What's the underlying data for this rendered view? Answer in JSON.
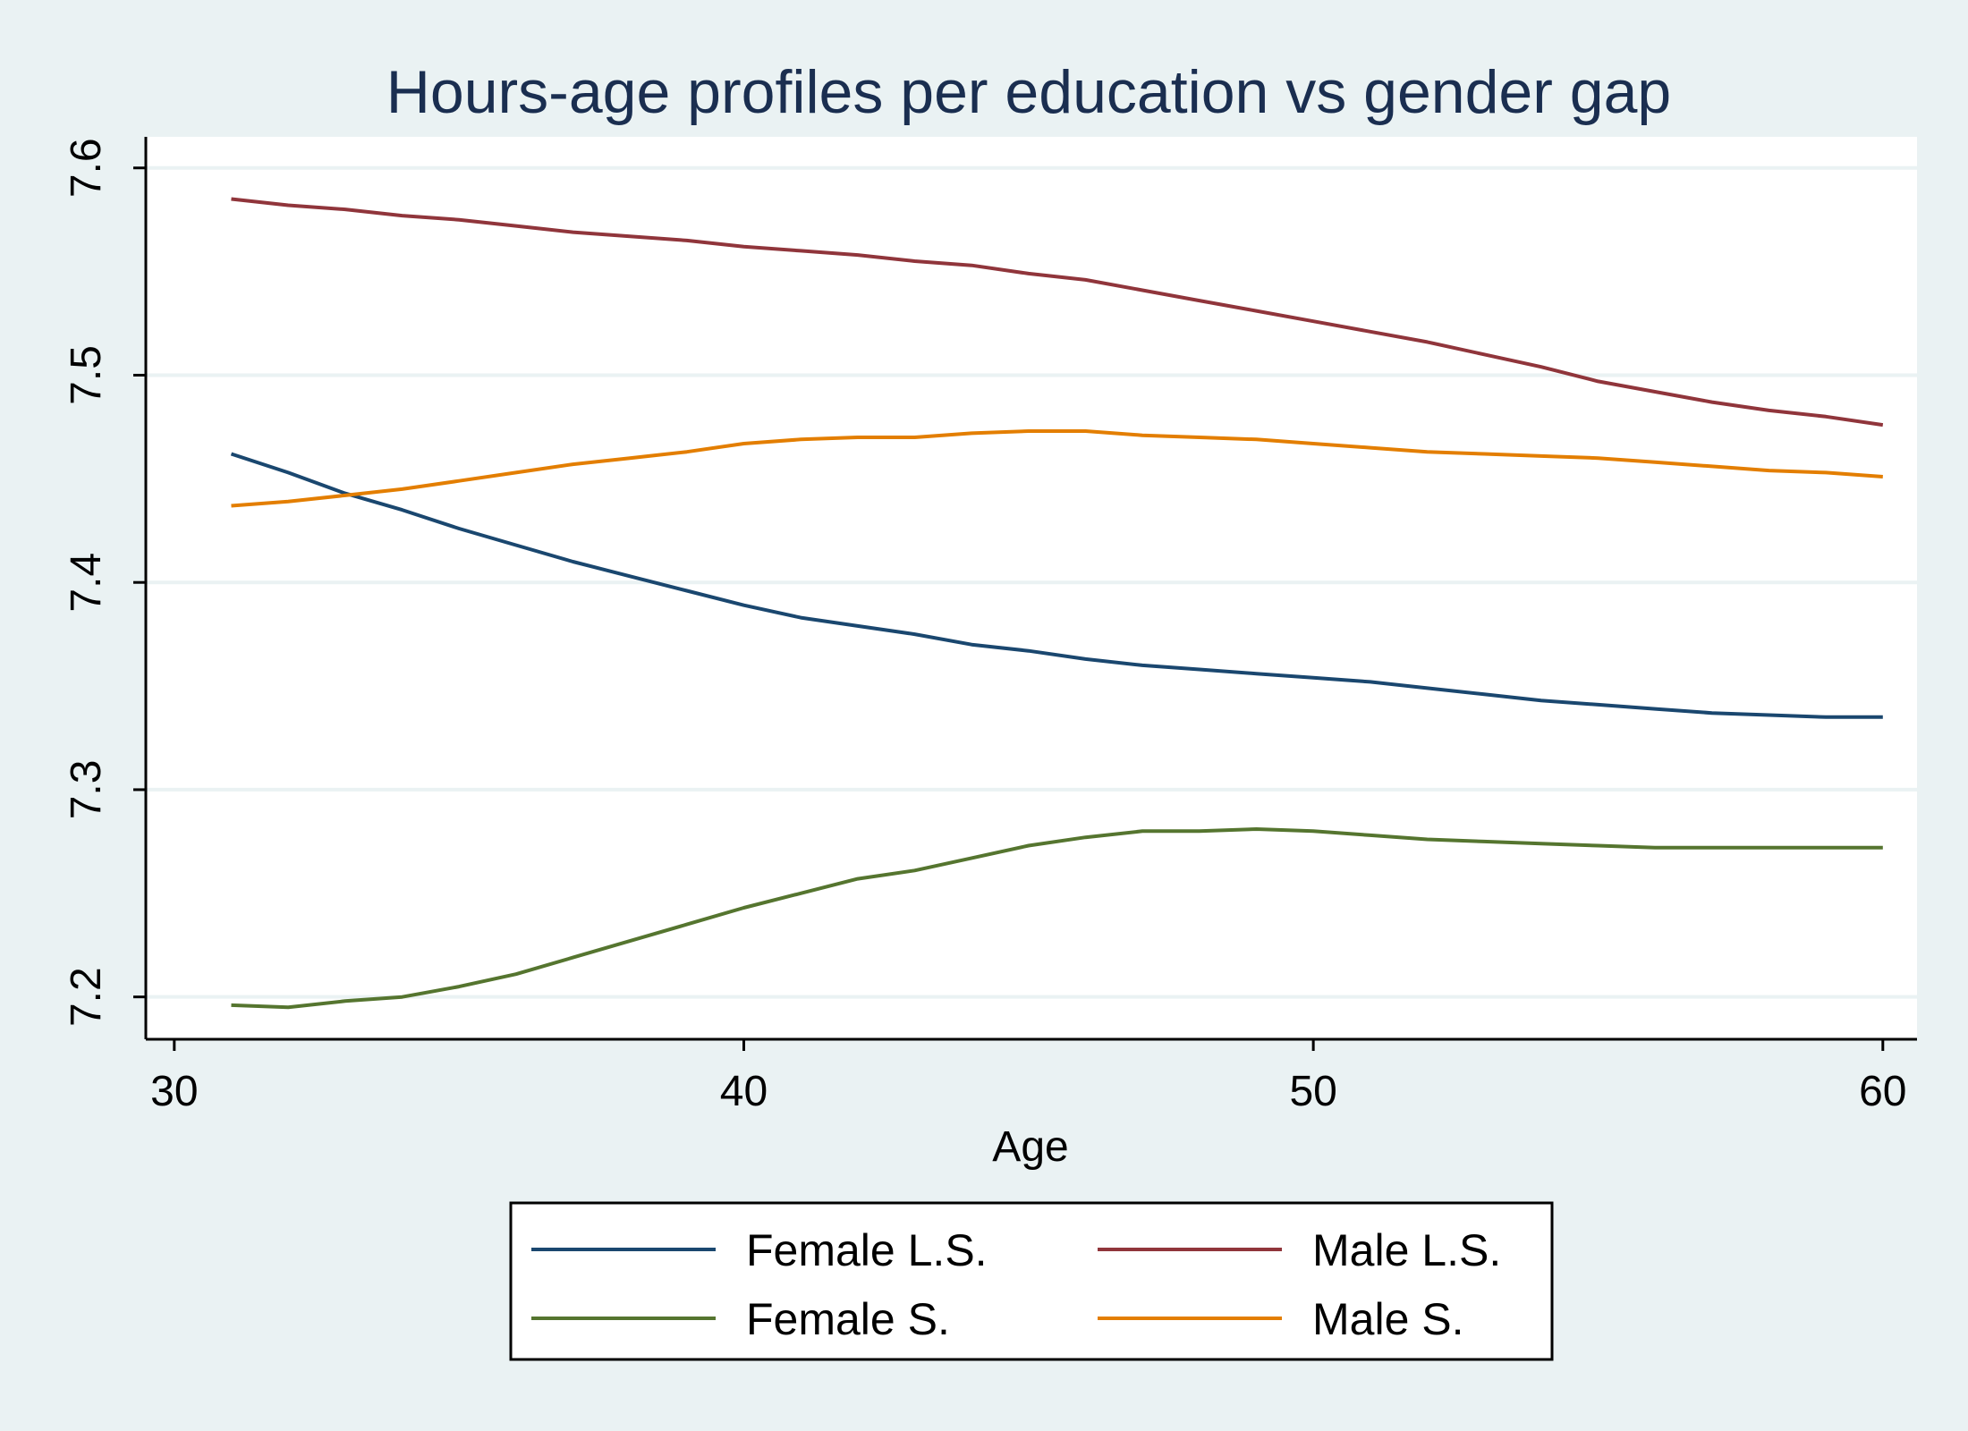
{
  "chart_data": {
    "type": "line",
    "title": "Hours-age profiles per education vs gender gap",
    "xlabel": "Age",
    "ylabel": "",
    "xlim": [
      29.5,
      60.6
    ],
    "ylim": [
      7.18,
      7.615
    ],
    "xticks": [
      30,
      40,
      50,
      60
    ],
    "yticks": [
      7.2,
      7.3,
      7.4,
      7.5,
      7.6
    ],
    "xtick_labels": [
      "30",
      "40",
      "50",
      "60"
    ],
    "ytick_labels": [
      "7.2",
      "7.3",
      "7.4",
      "7.5",
      "7.6"
    ],
    "grid": "horizontal",
    "legend_position": "bottom",
    "series": [
      {
        "name": "Female L.S.",
        "color": "#1a476f",
        "x": [
          31,
          32,
          33,
          34,
          35,
          36,
          37,
          38,
          39,
          40,
          41,
          42,
          43,
          44,
          45,
          46,
          47,
          48,
          49,
          50,
          51,
          52,
          53,
          54,
          55,
          56,
          57,
          58,
          59,
          60
        ],
        "y": [
          7.462,
          7.453,
          7.443,
          7.435,
          7.426,
          7.418,
          7.41,
          7.403,
          7.396,
          7.389,
          7.383,
          7.379,
          7.375,
          7.37,
          7.367,
          7.363,
          7.36,
          7.358,
          7.356,
          7.354,
          7.352,
          7.349,
          7.346,
          7.343,
          7.341,
          7.339,
          7.337,
          7.336,
          7.335,
          7.335
        ]
      },
      {
        "name": "Male L.S.",
        "color": "#90353b",
        "x": [
          31,
          32,
          33,
          34,
          35,
          36,
          37,
          38,
          39,
          40,
          41,
          42,
          43,
          44,
          45,
          46,
          47,
          48,
          49,
          50,
          51,
          52,
          53,
          54,
          55,
          56,
          57,
          58,
          59,
          60
        ],
        "y": [
          7.585,
          7.582,
          7.58,
          7.577,
          7.575,
          7.572,
          7.569,
          7.567,
          7.565,
          7.562,
          7.56,
          7.558,
          7.555,
          7.553,
          7.549,
          7.546,
          7.541,
          7.536,
          7.531,
          7.526,
          7.521,
          7.516,
          7.51,
          7.504,
          7.497,
          7.492,
          7.487,
          7.483,
          7.48,
          7.476
        ]
      },
      {
        "name": "Female S.",
        "color": "#55752f",
        "x": [
          31,
          32,
          33,
          34,
          35,
          36,
          37,
          38,
          39,
          40,
          41,
          42,
          43,
          44,
          45,
          46,
          47,
          48,
          49,
          50,
          51,
          52,
          53,
          54,
          55,
          56,
          57,
          58,
          59,
          60
        ],
        "y": [
          7.196,
          7.195,
          7.198,
          7.2,
          7.205,
          7.211,
          7.219,
          7.227,
          7.235,
          7.243,
          7.25,
          7.257,
          7.261,
          7.267,
          7.273,
          7.277,
          7.28,
          7.28,
          7.281,
          7.28,
          7.278,
          7.276,
          7.275,
          7.274,
          7.273,
          7.272,
          7.272,
          7.272,
          7.272,
          7.272
        ]
      },
      {
        "name": "Male S.",
        "color": "#e37e00",
        "x": [
          31,
          32,
          33,
          34,
          35,
          36,
          37,
          38,
          39,
          40,
          41,
          42,
          43,
          44,
          45,
          46,
          47,
          48,
          49,
          50,
          51,
          52,
          53,
          54,
          55,
          56,
          57,
          58,
          59,
          60
        ],
        "y": [
          7.437,
          7.439,
          7.442,
          7.445,
          7.449,
          7.453,
          7.457,
          7.46,
          7.463,
          7.467,
          7.469,
          7.47,
          7.47,
          7.472,
          7.473,
          7.473,
          7.471,
          7.47,
          7.469,
          7.467,
          7.465,
          7.463,
          7.462,
          7.461,
          7.46,
          7.458,
          7.456,
          7.454,
          7.453,
          7.451
        ]
      }
    ]
  }
}
